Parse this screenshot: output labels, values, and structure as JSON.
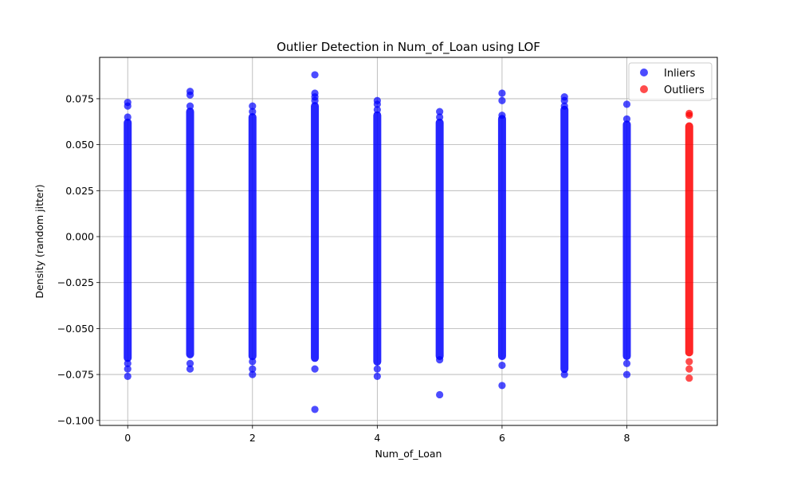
{
  "chart_data": {
    "type": "scatter",
    "title": "Outlier Detection in Num_of_Loan using LOF",
    "xlabel": "Num_of_Loan",
    "ylabel": "Density (random jitter)",
    "xlim": [
      -0.45,
      9.45
    ],
    "ylim": [
      -0.1027,
      0.0975
    ],
    "xticks": [
      0,
      2,
      4,
      6,
      8
    ],
    "xtick_labels": [
      "0",
      "2",
      "4",
      "6",
      "8"
    ],
    "yticks": [
      -0.1,
      -0.075,
      -0.05,
      -0.025,
      0.0,
      0.025,
      0.05,
      0.075
    ],
    "ytick_labels": [
      "−0.100",
      "−0.075",
      "−0.050",
      "−0.025",
      "0.000",
      "0.025",
      "0.050",
      "0.075"
    ],
    "grid": true,
    "legend_position": "top-right",
    "series": [
      {
        "name": "Inliers",
        "color": "#0000ff",
        "columns": [
          {
            "x": 0,
            "band": [
              -0.066,
              0.062
            ],
            "extremes": [
              -0.076,
              -0.072,
              -0.069,
              0.065,
              0.071,
              0.073
            ]
          },
          {
            "x": 1,
            "band": [
              -0.064,
              0.068
            ],
            "extremes": [
              -0.072,
              -0.069,
              0.071,
              0.077,
              0.079
            ]
          },
          {
            "x": 2,
            "band": [
              -0.065,
              0.065
            ],
            "extremes": [
              -0.075,
              -0.072,
              -0.068,
              0.068,
              0.071
            ]
          },
          {
            "x": 3,
            "band": [
              -0.066,
              0.071
            ],
            "extremes": [
              -0.094,
              -0.072,
              0.074,
              0.076,
              0.078,
              0.088
            ]
          },
          {
            "x": 4,
            "band": [
              -0.068,
              0.066
            ],
            "extremes": [
              -0.076,
              -0.072,
              0.069,
              0.072,
              0.074
            ]
          },
          {
            "x": 5,
            "band": [
              -0.065,
              0.062
            ],
            "extremes": [
              -0.086,
              -0.067,
              0.065,
              0.068
            ]
          },
          {
            "x": 6,
            "band": [
              -0.065,
              0.064
            ],
            "extremes": [
              -0.081,
              -0.07,
              0.066,
              0.074,
              0.078
            ]
          },
          {
            "x": 7,
            "band": [
              -0.072,
              0.069
            ],
            "extremes": [
              -0.075,
              0.071,
              0.074,
              0.076
            ]
          },
          {
            "x": 8,
            "band": [
              -0.065,
              0.061
            ],
            "extremes": [
              -0.075,
              -0.069,
              0.064,
              0.072
            ]
          }
        ]
      },
      {
        "name": "Outliers",
        "color": "#ff0000",
        "columns": [
          {
            "x": 9,
            "band": [
              -0.063,
              0.06
            ],
            "extremes": [
              -0.077,
              -0.072,
              -0.068,
              0.066,
              0.067
            ]
          }
        ]
      }
    ]
  }
}
